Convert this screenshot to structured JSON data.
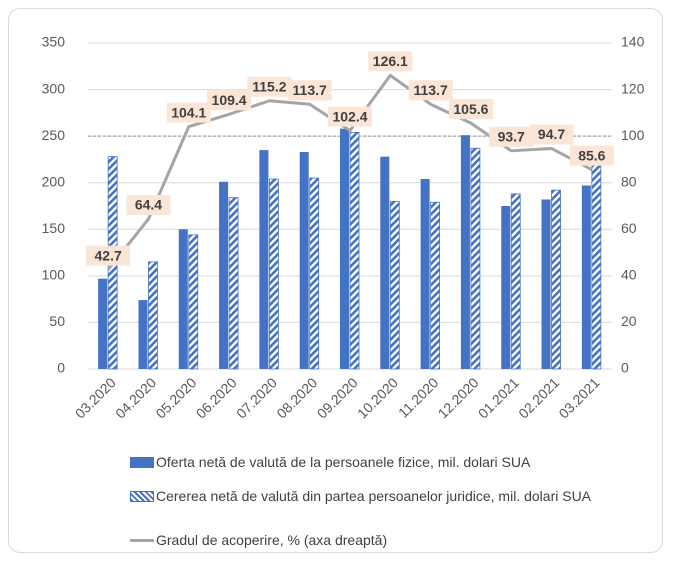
{
  "chart_data": {
    "type": "bar_line",
    "categories": [
      "03.2020",
      "04.2020",
      "05.2020",
      "06.2020",
      "07.2020",
      "08.2020",
      "09.2020",
      "10.2020",
      "11.2020",
      "12.2020",
      "01.2021",
      "02.2021",
      "03.2021"
    ],
    "series": [
      {
        "name": "Oferta netă de valută de la persoanele fizice, mil. dolari SUA",
        "type": "bar",
        "color": "#4472c4",
        "values": [
          97,
          74,
          150,
          201,
          235,
          233,
          258,
          228,
          204,
          251,
          175,
          182,
          197
        ]
      },
      {
        "name": "Cererea netă de valută din partea persoanelor juridice, mil. dolari SUA",
        "type": "bar",
        "hatched": true,
        "color": "#4472c4",
        "values": [
          228,
          115,
          144,
          184,
          204,
          205,
          254,
          180,
          179,
          237,
          188,
          192,
          231
        ]
      },
      {
        "name": "Gradul de acoperire, % (axa dreaptă)",
        "type": "line",
        "axis": "y2",
        "color": "#a5a5a5",
        "values": [
          42.7,
          64.4,
          104.1,
          109.4,
          115.2,
          113.7,
          102.4,
          126.1,
          113.7,
          105.6,
          93.7,
          94.7,
          85.6
        ]
      }
    ],
    "ylim": [
      0,
      350
    ],
    "yticks": [
      0,
      50,
      100,
      150,
      200,
      250,
      300,
      350
    ],
    "y2lim": [
      0,
      140
    ],
    "y2ticks": [
      0,
      20,
      40,
      60,
      80,
      100,
      120,
      140
    ],
    "y2_reference_line": 100,
    "grid": true
  }
}
